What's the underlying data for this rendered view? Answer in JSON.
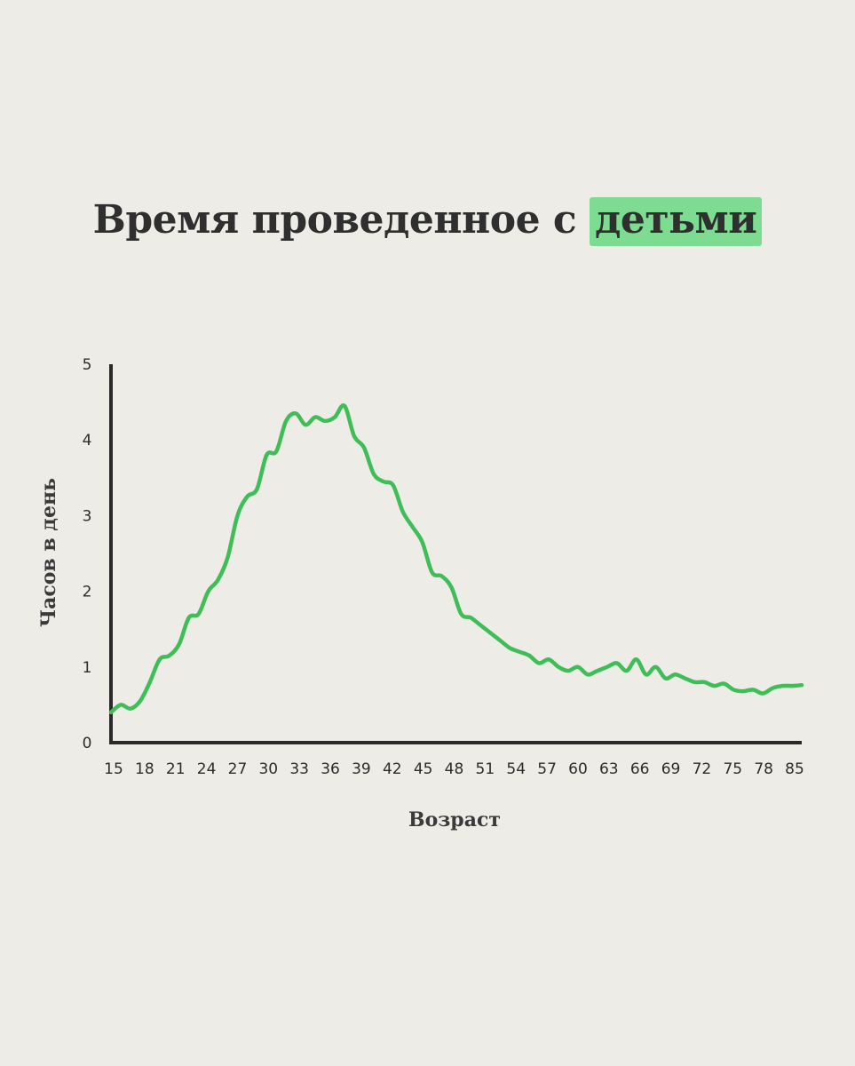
{
  "title": {
    "text": "Время проведенное с",
    "highlight": "детьми"
  },
  "chart_data": {
    "type": "line",
    "title": "Время проведенное с детьми",
    "xlabel": "Возраст",
    "ylabel": "Часов в день",
    "xlim": [
      15,
      86
    ],
    "ylim": [
      0,
      5
    ],
    "x_ticks": [
      "15",
      "18",
      "21",
      "24",
      "27",
      "30",
      "33",
      "36",
      "39",
      "42",
      "45",
      "48",
      "51",
      "54",
      "57",
      "60",
      "63",
      "66",
      "69",
      "72",
      "75",
      "78",
      "85"
    ],
    "y_ticks": [
      "0",
      "1",
      "2",
      "3",
      "4",
      "5"
    ],
    "series_color": "#3fbe58",
    "x": [
      15,
      16,
      17,
      18,
      19,
      20,
      21,
      22,
      23,
      24,
      25,
      26,
      27,
      28,
      29,
      30,
      31,
      32,
      33,
      34,
      35,
      36,
      37,
      38,
      39,
      40,
      41,
      42,
      43,
      44,
      45,
      46,
      47,
      48,
      49,
      50,
      51,
      52,
      53,
      54,
      55,
      56,
      57,
      58,
      59,
      60,
      61,
      62,
      63,
      64,
      65,
      66,
      67,
      68,
      69,
      70,
      71,
      72,
      73,
      74,
      75,
      76,
      77,
      78,
      79,
      80,
      81,
      82,
      83,
      84,
      85,
      86
    ],
    "y": [
      0.4,
      0.5,
      0.45,
      0.55,
      0.8,
      1.1,
      1.15,
      1.3,
      1.65,
      1.7,
      2.0,
      2.15,
      2.45,
      3.0,
      3.25,
      3.35,
      3.8,
      3.85,
      4.25,
      4.35,
      4.2,
      4.3,
      4.25,
      4.3,
      4.45,
      4.05,
      3.9,
      3.55,
      3.45,
      3.4,
      3.05,
      2.85,
      2.65,
      2.25,
      2.2,
      2.05,
      1.7,
      1.65,
      1.55,
      1.45,
      1.35,
      1.25,
      1.2,
      1.15,
      1.05,
      1.1,
      1.0,
      0.95,
      1.0,
      0.9,
      0.95,
      1.0,
      1.05,
      0.95,
      1.1,
      0.9,
      1.0,
      0.85,
      0.9,
      0.85,
      0.8,
      0.8,
      0.75,
      0.78,
      0.7,
      0.68,
      0.7,
      0.65,
      0.72,
      0.75,
      0.75,
      0.76
    ]
  }
}
